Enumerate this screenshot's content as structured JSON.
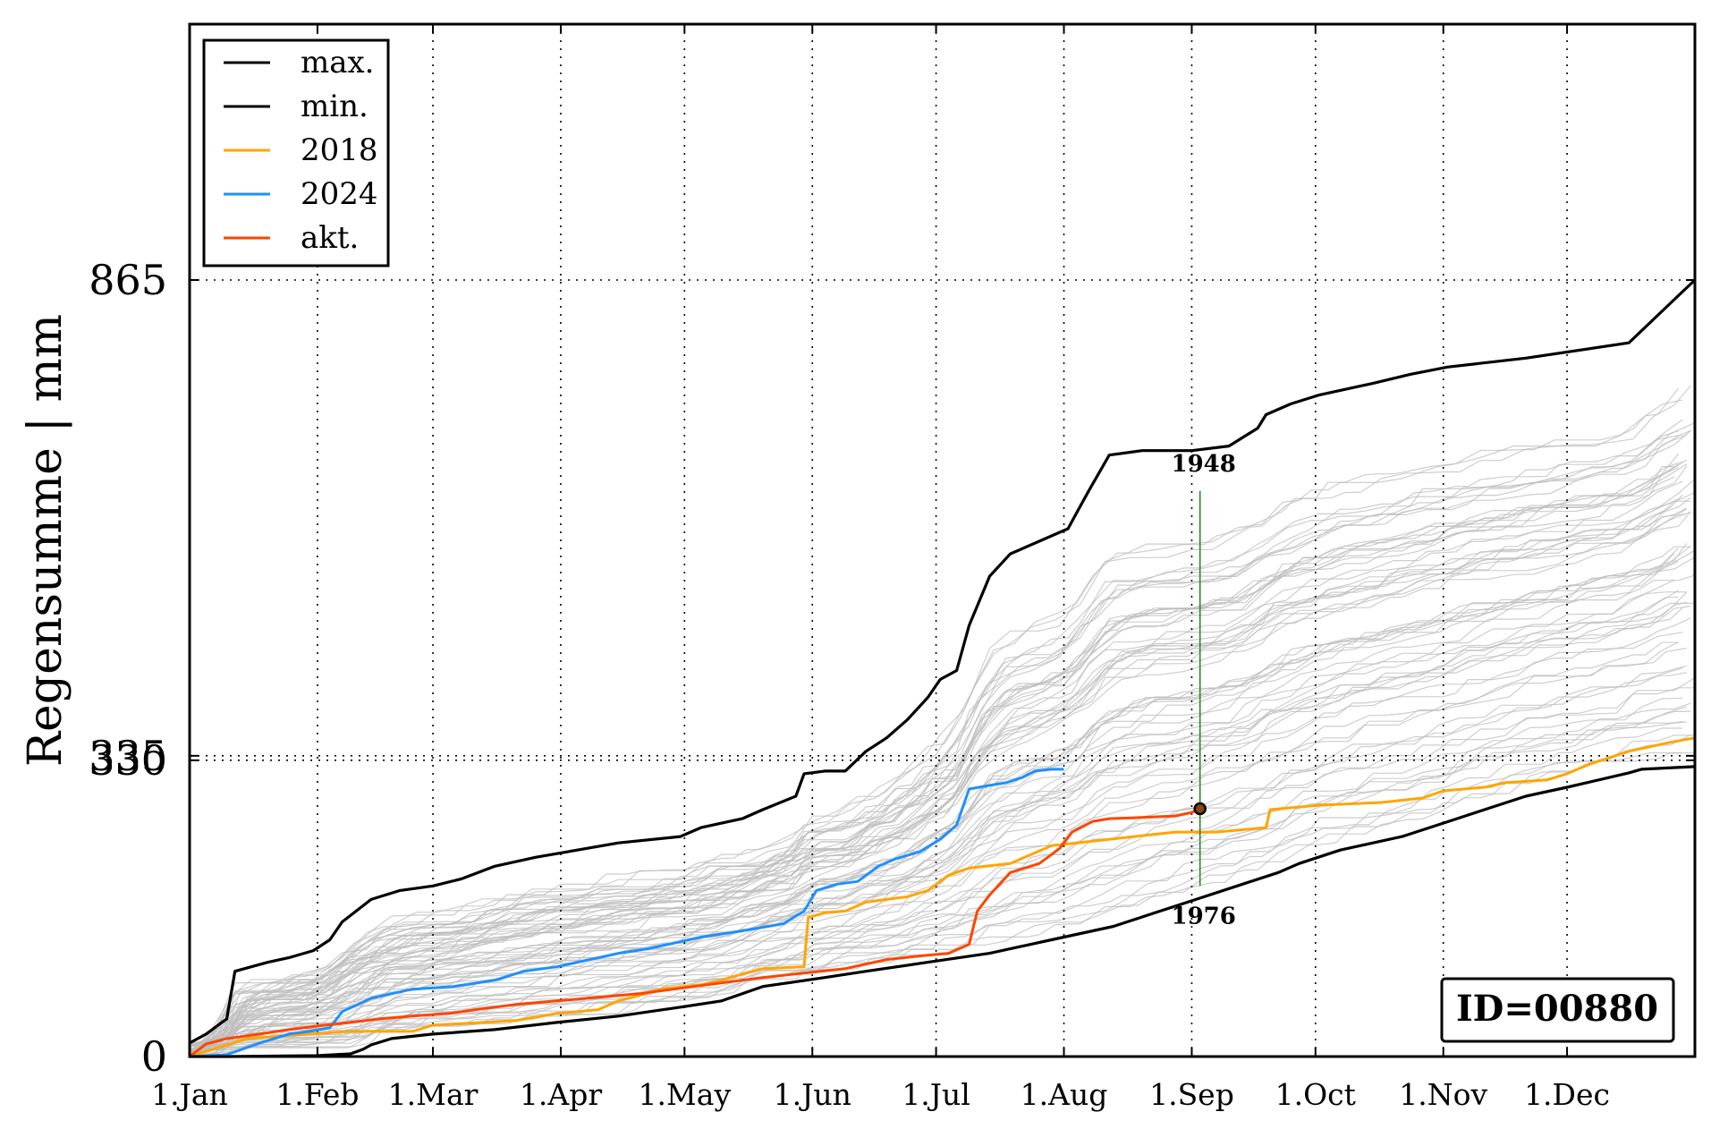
{
  "chart_data": {
    "type": "line",
    "ylabel": "Regensumme | mm",
    "xlabel": "",
    "title": "",
    "x_unit": "day of year",
    "xlim": [
      1,
      366
    ],
    "ylim": [
      0,
      1150
    ],
    "x_ticks": [
      {
        "label": "1.Jan",
        "day": 1
      },
      {
        "label": "1.Feb",
        "day": 32
      },
      {
        "label": "1.Mar",
        "day": 60
      },
      {
        "label": "1.Apr",
        "day": 91
      },
      {
        "label": "1.May",
        "day": 121
      },
      {
        "label": "1.Jun",
        "day": 152
      },
      {
        "label": "1.Jul",
        "day": 182
      },
      {
        "label": "1.Aug",
        "day": 213
      },
      {
        "label": "1.Sep",
        "day": 244
      },
      {
        "label": "1.Oct",
        "day": 274
      },
      {
        "label": "1.Nov",
        "day": 305
      },
      {
        "label": "1.Dec",
        "day": 335
      }
    ],
    "y_ticks": [
      {
        "label": "0",
        "value": 0
      },
      {
        "label": "330",
        "value": 330
      },
      {
        "label": "335",
        "value": 335
      },
      {
        "label": "865",
        "value": 865
      }
    ],
    "grid": true,
    "legend_position": "top-left",
    "legend": [
      {
        "label": "max.",
        "color": "#000000"
      },
      {
        "label": "min.",
        "color": "#000000"
      },
      {
        "label": "2018",
        "color": "#ffa500"
      },
      {
        "label": "2024",
        "color": "#1e90ff"
      },
      {
        "label": "akt.",
        "color": "#ff4500"
      }
    ],
    "series": [
      {
        "name": "max.",
        "color": "#000000",
        "points": [
          [
            1,
            15
          ],
          [
            5,
            25
          ],
          [
            10,
            42
          ],
          [
            12,
            95
          ],
          [
            20,
            105
          ],
          [
            25,
            110
          ],
          [
            31,
            118
          ],
          [
            35,
            130
          ],
          [
            38,
            150
          ],
          [
            45,
            175
          ],
          [
            52,
            185
          ],
          [
            60,
            190
          ],
          [
            67,
            198
          ],
          [
            75,
            212
          ],
          [
            85,
            222
          ],
          [
            95,
            230
          ],
          [
            105,
            238
          ],
          [
            120,
            245
          ],
          [
            125,
            255
          ],
          [
            135,
            265
          ],
          [
            140,
            275
          ],
          [
            148,
            290
          ],
          [
            150,
            315
          ],
          [
            155,
            318
          ],
          [
            160,
            318
          ],
          [
            165,
            340
          ],
          [
            170,
            355
          ],
          [
            175,
            375
          ],
          [
            180,
            400
          ],
          [
            183,
            420
          ],
          [
            187,
            430
          ],
          [
            190,
            480
          ],
          [
            195,
            535
          ],
          [
            200,
            560
          ],
          [
            210,
            580
          ],
          [
            214,
            588
          ],
          [
            216,
            605
          ],
          [
            219,
            630
          ],
          [
            224,
            670
          ],
          [
            232,
            675
          ],
          [
            244,
            675
          ],
          [
            253,
            680
          ],
          [
            260,
            700
          ],
          [
            262,
            715
          ],
          [
            268,
            727
          ],
          [
            275,
            737
          ],
          [
            288,
            750
          ],
          [
            297,
            760
          ],
          [
            306,
            768
          ],
          [
            325,
            778
          ],
          [
            350,
            795
          ],
          [
            363,
            852
          ],
          [
            366,
            865
          ]
        ]
      },
      {
        "name": "min.",
        "color": "#000000",
        "points": [
          [
            1,
            0
          ],
          [
            10,
            0
          ],
          [
            32,
            1
          ],
          [
            40,
            3
          ],
          [
            43,
            8
          ],
          [
            45,
            13
          ],
          [
            50,
            20
          ],
          [
            60,
            25
          ],
          [
            75,
            30
          ],
          [
            90,
            38
          ],
          [
            105,
            45
          ],
          [
            120,
            55
          ],
          [
            130,
            62
          ],
          [
            135,
            70
          ],
          [
            140,
            78
          ],
          [
            155,
            88
          ],
          [
            165,
            95
          ],
          [
            180,
            105
          ],
          [
            195,
            115
          ],
          [
            210,
            130
          ],
          [
            225,
            145
          ],
          [
            235,
            160
          ],
          [
            245,
            175
          ],
          [
            255,
            190
          ],
          [
            265,
            205
          ],
          [
            270,
            215
          ],
          [
            280,
            230
          ],
          [
            295,
            245
          ],
          [
            305,
            260
          ],
          [
            315,
            275
          ],
          [
            325,
            290
          ],
          [
            335,
            300
          ],
          [
            350,
            316
          ],
          [
            353,
            320
          ],
          [
            366,
            323
          ]
        ]
      },
      {
        "name": "2018",
        "color": "#ffa500",
        "points": [
          [
            1,
            0
          ],
          [
            15,
            20
          ],
          [
            30,
            25
          ],
          [
            40,
            28
          ],
          [
            55,
            28
          ],
          [
            60,
            35
          ],
          [
            80,
            40
          ],
          [
            90,
            48
          ],
          [
            100,
            52
          ],
          [
            105,
            62
          ],
          [
            110,
            68
          ],
          [
            115,
            75
          ],
          [
            125,
            80
          ],
          [
            130,
            85
          ],
          [
            135,
            92
          ],
          [
            140,
            98
          ],
          [
            150,
            100
          ],
          [
            151,
            155
          ],
          [
            155,
            160
          ],
          [
            160,
            162
          ],
          [
            165,
            172
          ],
          [
            170,
            175
          ],
          [
            175,
            178
          ],
          [
            180,
            185
          ],
          [
            185,
            202
          ],
          [
            190,
            210
          ],
          [
            200,
            215
          ],
          [
            205,
            225
          ],
          [
            210,
            235
          ],
          [
            220,
            240
          ],
          [
            230,
            245
          ],
          [
            240,
            250
          ],
          [
            250,
            250
          ],
          [
            262,
            255
          ],
          [
            263,
            275
          ],
          [
            275,
            280
          ],
          [
            290,
            283
          ],
          [
            300,
            288
          ],
          [
            305,
            296
          ],
          [
            315,
            300
          ],
          [
            320,
            305
          ],
          [
            330,
            308
          ],
          [
            335,
            315
          ],
          [
            340,
            325
          ],
          [
            350,
            340
          ],
          [
            360,
            350
          ],
          [
            366,
            355
          ]
        ]
      },
      {
        "name": "2024",
        "color": "#1e90ff",
        "points": [
          [
            1,
            0
          ],
          [
            10,
            2
          ],
          [
            18,
            15
          ],
          [
            25,
            25
          ],
          [
            30,
            28
          ],
          [
            35,
            32
          ],
          [
            38,
            50
          ],
          [
            45,
            65
          ],
          [
            55,
            75
          ],
          [
            65,
            78
          ],
          [
            75,
            85
          ],
          [
            82,
            95
          ],
          [
            90,
            100
          ],
          [
            98,
            108
          ],
          [
            105,
            115
          ],
          [
            112,
            120
          ],
          [
            118,
            126
          ],
          [
            125,
            133
          ],
          [
            135,
            140
          ],
          [
            145,
            148
          ],
          [
            150,
            162
          ],
          [
            153,
            185
          ],
          [
            158,
            192
          ],
          [
            163,
            195
          ],
          [
            168,
            212
          ],
          [
            172,
            220
          ],
          [
            178,
            228
          ],
          [
            183,
            242
          ],
          [
            187,
            258
          ],
          [
            190,
            298
          ],
          [
            195,
            302
          ],
          [
            199,
            305
          ],
          [
            203,
            311
          ],
          [
            206,
            318
          ],
          [
            210,
            320
          ],
          [
            213,
            320
          ]
        ]
      },
      {
        "name": "akt.",
        "color": "#ff4500",
        "points": [
          [
            1,
            0
          ],
          [
            5,
            14
          ],
          [
            10,
            20
          ],
          [
            18,
            25
          ],
          [
            25,
            30
          ],
          [
            32,
            34
          ],
          [
            40,
            38
          ],
          [
            47,
            42
          ],
          [
            55,
            45
          ],
          [
            64,
            48
          ],
          [
            70,
            52
          ],
          [
            80,
            58
          ],
          [
            90,
            62
          ],
          [
            100,
            66
          ],
          [
            110,
            70
          ],
          [
            120,
            76
          ],
          [
            130,
            82
          ],
          [
            140,
            88
          ],
          [
            150,
            93
          ],
          [
            160,
            98
          ],
          [
            170,
            108
          ],
          [
            178,
            112
          ],
          [
            185,
            115
          ],
          [
            190,
            125
          ],
          [
            192,
            162
          ],
          [
            195,
            180
          ],
          [
            200,
            205
          ],
          [
            207,
            215
          ],
          [
            210,
            225
          ],
          [
            212,
            232
          ],
          [
            215,
            250
          ],
          [
            220,
            262
          ],
          [
            224,
            265
          ],
          [
            230,
            266
          ],
          [
            240,
            268
          ],
          [
            244,
            272
          ],
          [
            246,
            276
          ]
        ]
      }
    ],
    "historical_years_gray": {
      "color": "#bdbdbd",
      "count": 70,
      "start_range": [
        0,
        20
      ],
      "end_range": [
        323,
        860
      ]
    },
    "annotations": [
      {
        "label": "1948",
        "day": 246,
        "value": 630,
        "position": "above"
      },
      {
        "label": "1976",
        "day": 246,
        "value": 190,
        "position": "below"
      }
    ],
    "current_marker": {
      "day": 246,
      "value": 276,
      "color": "#8b4513"
    },
    "id_box": "ID=00880"
  }
}
